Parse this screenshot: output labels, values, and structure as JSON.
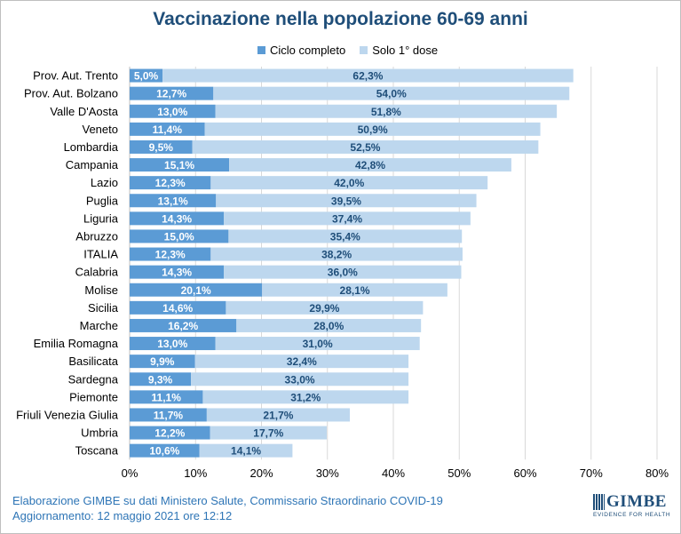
{
  "title": "Vaccinazione nella popolazione 60-69 anni",
  "legend": {
    "series1": "Ciclo completo",
    "series2": "Solo 1° dose"
  },
  "colors": {
    "ciclo_completo": "#5b9bd5",
    "solo_prima_dose": "#bdd7ee",
    "title": "#1f4e79",
    "value_label": "#1f4e79",
    "footer": "#2e75b6"
  },
  "footer": {
    "line1": "Elaborazione GIMBE su dati Ministero Salute, Commissario Straordinario COVID-19",
    "line2": "Aggiornamento: 12 maggio 2021 ore 12:12"
  },
  "logo": {
    "name": "GIMBE",
    "tagline": "EVIDENCE FOR HEALTH"
  },
  "chart_data": {
    "type": "bar",
    "orientation": "horizontal",
    "stacked": true,
    "title": "Vaccinazione nella popolazione 60-69 anni",
    "categories": [
      "Prov. Aut. Trento",
      "Prov. Aut. Bolzano",
      "Valle D'Aosta",
      "Veneto",
      "Lombardia",
      "Campania",
      "Lazio",
      "Puglia",
      "Liguria",
      "Abruzzo",
      "ITALIA",
      "Calabria",
      "Molise",
      "Sicilia",
      "Marche",
      "Emilia Romagna",
      "Basilicata",
      "Sardegna",
      "Piemonte",
      "Friuli Venezia Giulia",
      "Umbria",
      "Toscana"
    ],
    "series": [
      {
        "name": "Ciclo completo",
        "values": [
          5.0,
          12.7,
          13.0,
          11.4,
          9.5,
          15.1,
          12.3,
          13.1,
          14.3,
          15.0,
          12.3,
          14.3,
          20.1,
          14.6,
          16.2,
          13.0,
          9.9,
          9.3,
          11.1,
          11.7,
          12.2,
          10.6
        ],
        "labels": [
          "5,0%",
          "12,7%",
          "13,0%",
          "11,4%",
          "9,5%",
          "15,1%",
          "12,3%",
          "13,1%",
          "14,3%",
          "15,0%",
          "12,3%",
          "14,3%",
          "20,1%",
          "14,6%",
          "16,2%",
          "13,0%",
          "9,9%",
          "9,3%",
          "11,1%",
          "11,7%",
          "12,2%",
          "10,6%"
        ]
      },
      {
        "name": "Solo 1° dose",
        "values": [
          62.3,
          54.0,
          51.8,
          50.9,
          52.5,
          42.8,
          42.0,
          39.5,
          37.4,
          35.4,
          38.2,
          36.0,
          28.1,
          29.9,
          28.0,
          31.0,
          32.4,
          33.0,
          31.2,
          21.7,
          17.7,
          14.1
        ],
        "labels": [
          "62,3%",
          "54,0%",
          "51,8%",
          "50,9%",
          "52,5%",
          "42,8%",
          "42,0%",
          "39,5%",
          "37,4%",
          "35,4%",
          "38,2%",
          "36,0%",
          "28,1%",
          "29,9%",
          "28,0%",
          "31,0%",
          "32,4%",
          "33,0%",
          "31,2%",
          "21,7%",
          "17,7%",
          "14,1%"
        ]
      }
    ],
    "xlim": [
      0,
      80
    ],
    "xticks": [
      "0%",
      "10%",
      "20%",
      "30%",
      "40%",
      "50%",
      "60%",
      "70%",
      "80%"
    ],
    "grid": true,
    "legend_position": "top"
  }
}
